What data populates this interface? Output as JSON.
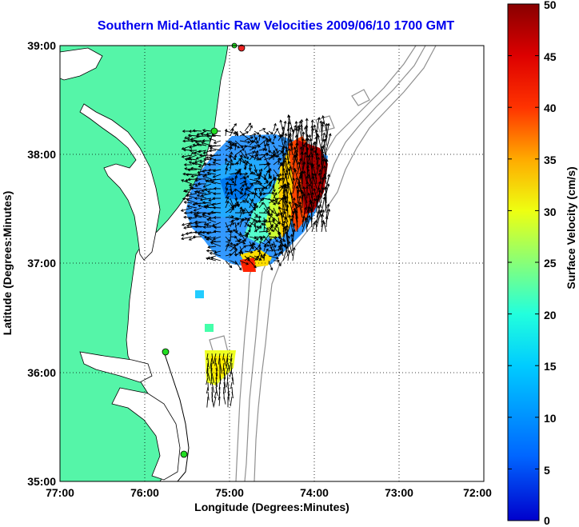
{
  "title": "Southern Mid-Atlantic Raw Velocities 2009/06/10 1700 GMT",
  "xlabel": "Longitude (Degrees:Minutes)",
  "ylabel": "Latitude (Degrees:Minutes)",
  "colorbar_label": "Surface Velocity (cm/s)",
  "x_ticks": [
    "77:00",
    "76:00",
    "75:00",
    "74:00",
    "73:00",
    "72:00"
  ],
  "y_ticks": [
    "39:00",
    "38:00",
    "37:00",
    "36:00",
    "35:00"
  ],
  "colorbar_ticks": [
    "0",
    "5",
    "10",
    "15",
    "20",
    "25",
    "30",
    "35",
    "40",
    "45",
    "50"
  ],
  "colors": {
    "land": "#55f5a8",
    "title": "#0000ee",
    "station": "#22dd22"
  },
  "map": {
    "lon_range": [
      -77,
      -72
    ],
    "lat_range": [
      35,
      39
    ],
    "grid": "dotted",
    "colorbar_range_cm_s": [
      0,
      50
    ]
  }
}
